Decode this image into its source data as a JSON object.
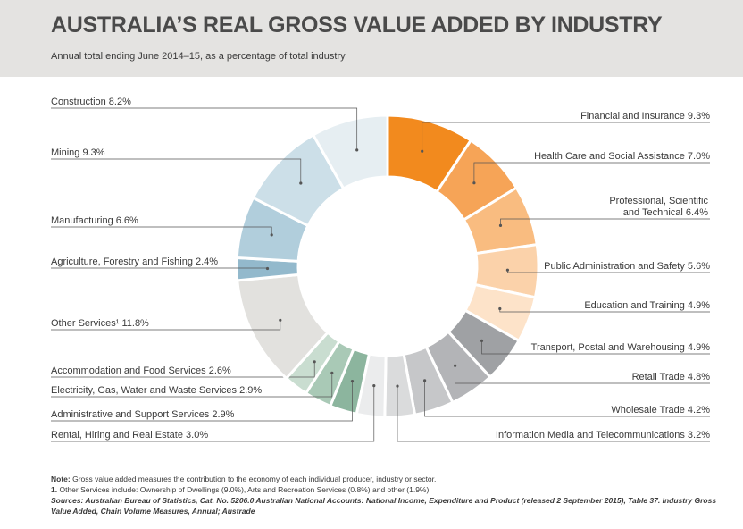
{
  "header": {
    "title": "AUSTRALIA’S REAL GROSS VALUE ADDED BY INDUSTRY",
    "subtitle": "Annual total ending June 2014–15, as a percentage of total industry"
  },
  "chart_data": {
    "type": "pie",
    "subtype": "donut",
    "title": "AUSTRALIA’S REAL GROSS VALUE ADDED BY INDUSTRY",
    "subtitle": "Annual total ending June 2014–15, as a percentage of total industry",
    "unit": "%",
    "slices": [
      {
        "label": "Financial and Insurance 9.3%",
        "value": 9.3,
        "color": "#f28a1e"
      },
      {
        "label": "Health Care and Social Assistance 7.0%",
        "value": 7.0,
        "color": "#f6a457"
      },
      {
        "label": "Professional, Scientific\nand Technical 6.4%",
        "value": 6.4,
        "color": "#f9bc80"
      },
      {
        "label": "Public Administration and Safety 5.6%",
        "value": 5.6,
        "color": "#fbd2aa"
      },
      {
        "label": "Education and Training 4.9%",
        "value": 4.9,
        "color": "#fde3c9"
      },
      {
        "label": "Transport, Postal and Warehousing 4.9%",
        "value": 4.9,
        "color": "#9fa1a4"
      },
      {
        "label": "Retail Trade  4.8%",
        "value": 4.8,
        "color": "#b3b4b7"
      },
      {
        "label": "Wholesale Trade 4.2%",
        "value": 4.2,
        "color": "#c6c7c9"
      },
      {
        "label": "Information Media and Telecommunications 3.2%",
        "value": 3.2,
        "color": "#dadbdc"
      },
      {
        "label": "Rental, Hiring and Real Estate 3.0%",
        "value": 3.0,
        "color": "#ebeced"
      },
      {
        "label": "Administrative and Support Services 2.9%",
        "value": 2.9,
        "color": "#8cb59e"
      },
      {
        "label": "Electricity, Gas, Water and Waste Services 2.9%",
        "value": 2.9,
        "color": "#a9c9b6"
      },
      {
        "label": "Accommodation and Food Services 2.6%",
        "value": 2.6,
        "color": "#c9ddd0"
      },
      {
        "label": "Other Services¹  11.8%",
        "value": 11.8,
        "color": "#e2e1de"
      },
      {
        "label": "Agriculture, Forestry and Fishing 2.4%",
        "value": 2.4,
        "color": "#93b9cc"
      },
      {
        "label": "Manufacturing 6.6%",
        "value": 6.6,
        "color": "#b1cedc"
      },
      {
        "label": "Mining 9.3%",
        "value": 9.3,
        "color": "#ccdfe8"
      },
      {
        "label": "Construction 8.2%",
        "value": 8.2,
        "color": "#e6eef2"
      }
    ],
    "legend": "none"
  },
  "notes": {
    "note_label": "Note:",
    "note_text": " Gross value added measures the contribution to the economy of each individual producer, industry or sector.",
    "footnote_label": "1.",
    "footnote_text": " Other Services include: Ownership of Dwellings (9.0%), Arts and Recreation Services (0.8%) and other (1.9%)",
    "sources": "Sources: Australian Bureau of Statistics, Cat. No. 5206.0 Australian National Accounts: National Income, Expenditure and Product (released 2 September 2015), Table 37. Industry Gross Value Added, Chain Volume Measures, Annual; Austrade"
  }
}
